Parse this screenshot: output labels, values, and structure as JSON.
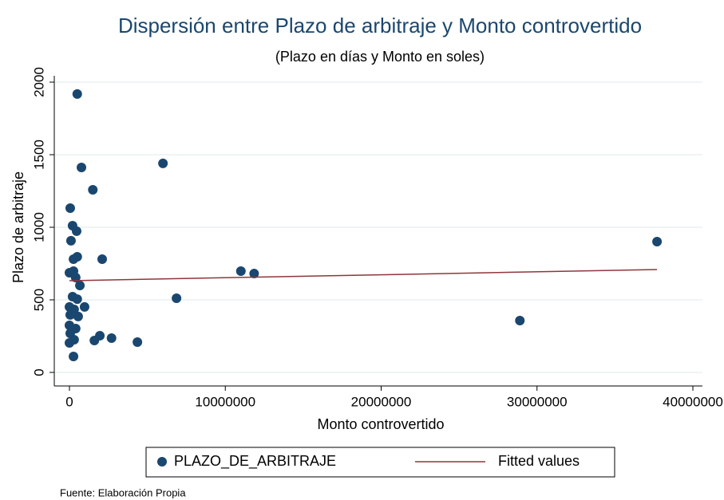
{
  "chart_data": {
    "type": "scatter",
    "title": "Dispersión entre Plazo de arbitraje y Monto controvertido",
    "subtitle": "(Plazo en días y Monto en soles)",
    "x_label": "Monto controvertido",
    "y_label": "Plazo de arbitraje",
    "note": "Fuente: Elaboración Propia",
    "xlim": [
      0,
      40000000
    ],
    "xticks": [
      0,
      10000000,
      20000000,
      30000000,
      40000000
    ],
    "ylim": [
      0,
      2000
    ],
    "yticks": [
      0,
      500,
      1000,
      1500,
      2000
    ],
    "grid": true,
    "legend": "bottom",
    "series": [
      {
        "name": "PLAZO_DE_ARBITRAJE",
        "type": "scatter",
        "color": "#1a476f",
        "x": [
          500000,
          6000000,
          770000,
          1500000,
          50000,
          200000,
          460000,
          100000,
          500000,
          260000,
          2100000,
          0,
          260000,
          400000,
          670000,
          11000000,
          11850000,
          6870000,
          37700000,
          200000,
          500000,
          970000,
          0,
          300000,
          560000,
          50000,
          400000,
          150000,
          0,
          1950000,
          2700000,
          1600000,
          4360000,
          28900000,
          300000,
          0,
          260000,
          50000
        ],
        "values": [
          1918,
          1440,
          1412,
          1258,
          1132,
          1011,
          973,
          907,
          797,
          780,
          780,
          687,
          698,
          654,
          599,
          698,
          681,
          511,
          901,
          522,
          505,
          451,
          451,
          434,
          385,
          396,
          302,
          291,
          324,
          253,
          236,
          220,
          209,
          357,
          225,
          203,
          110,
          269
        ]
      },
      {
        "name": "Fitted values",
        "type": "line",
        "color": "#90353b",
        "x": [
          0,
          37700000
        ],
        "values": [
          632,
          709
        ]
      }
    ]
  }
}
